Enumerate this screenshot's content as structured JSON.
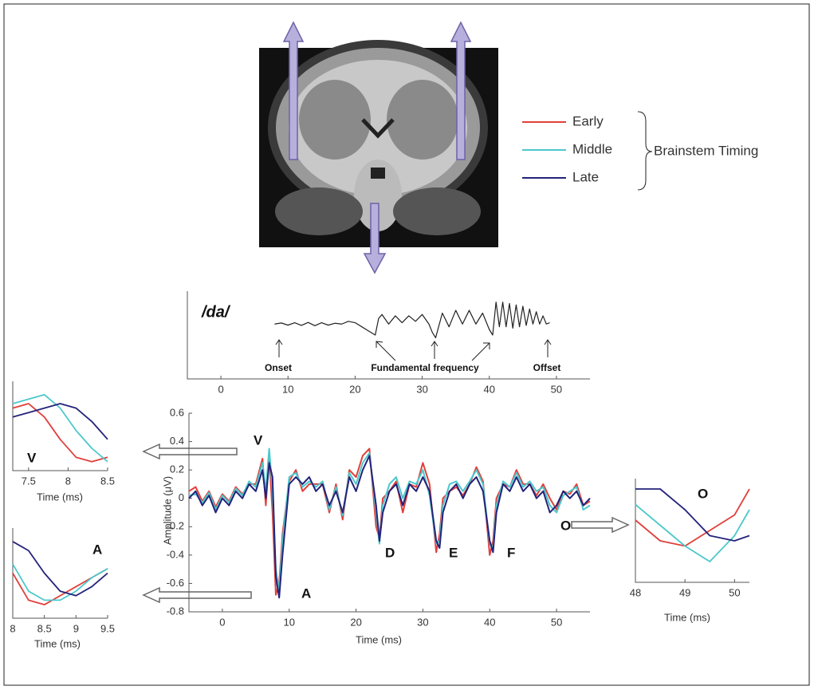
{
  "chart_data": [
    {
      "type": "line",
      "xlabel": "Time (ms)",
      "ylabel": "Amplitude (μV)",
      "xlim": [
        -5,
        55
      ],
      "ylim": [
        -0.8,
        0.6
      ],
      "xticks": [
        0,
        10,
        20,
        30,
        40,
        50
      ],
      "yticks": [
        -0.8,
        -0.6,
        -0.4,
        -0.2,
        0,
        0.2,
        0.4,
        0.6
      ],
      "legend_title": "Brainstem Timing",
      "annotations": [
        "V",
        "A",
        "D",
        "E",
        "F",
        "O"
      ],
      "x": [
        -5,
        -4,
        -3,
        -2,
        -1,
        0,
        1,
        2,
        3,
        4,
        5,
        6,
        6.5,
        7,
        7.5,
        8,
        8.5,
        9,
        10,
        11,
        12,
        13,
        14,
        15,
        16,
        17,
        18,
        19,
        20,
        21,
        22,
        23,
        23.5,
        24,
        25,
        26,
        27,
        28,
        29,
        30,
        31,
        32,
        32.5,
        33,
        34,
        35,
        36,
        37,
        38,
        39,
        40,
        40.5,
        41,
        42,
        43,
        44,
        45,
        46,
        47,
        48,
        49,
        50,
        51,
        52,
        53,
        54,
        55
      ],
      "series": [
        {
          "name": "Early",
          "color": "#e0403c",
          "values": [
            0.05,
            0.08,
            -0.02,
            0.05,
            -0.06,
            0.03,
            -0.02,
            0.08,
            0.03,
            0.1,
            0.1,
            0.28,
            -0.05,
            0.3,
            -0.1,
            -0.68,
            -0.6,
            -0.25,
            0.12,
            0.2,
            0.05,
            0.1,
            0.1,
            0.1,
            -0.1,
            0.1,
            -0.15,
            0.2,
            0.15,
            0.3,
            0.35,
            -0.2,
            -0.28,
            0,
            0.05,
            0.12,
            -0.1,
            0.1,
            0.08,
            0.25,
            0.1,
            -0.38,
            -0.25,
            0,
            0.05,
            0.08,
            0.02,
            0.1,
            0.22,
            0.12,
            -0.4,
            -0.3,
            0,
            0.1,
            0.08,
            0.2,
            0.1,
            0.1,
            0.02,
            0.1,
            0,
            -0.08,
            0.05,
            0.03,
            0.1,
            -0.05,
            -0.02
          ]
        },
        {
          "name": "Middle",
          "color": "#4cc8cc",
          "values": [
            0.02,
            0.03,
            -0.03,
            0.04,
            -0.08,
            0.02,
            -0.03,
            0.07,
            0.02,
            0.12,
            0.08,
            0.25,
            0.05,
            0.35,
            0.05,
            -0.5,
            -0.65,
            -0.3,
            0.15,
            0.18,
            0.08,
            0.12,
            0.08,
            0.12,
            -0.08,
            0.08,
            -0.12,
            0.18,
            0.1,
            0.25,
            0.32,
            -0.1,
            -0.32,
            -0.05,
            0.1,
            0.15,
            0,
            0.12,
            0.1,
            0.2,
            0.02,
            -0.32,
            -0.3,
            -0.05,
            0.1,
            0.12,
            0.05,
            0.12,
            0.2,
            0.1,
            -0.32,
            -0.35,
            -0.05,
            0.12,
            0.08,
            0.18,
            0.08,
            0.12,
            0.05,
            0.08,
            -0.05,
            -0.1,
            0.02,
            0.05,
            0.08,
            -0.08,
            -0.05
          ]
        },
        {
          "name": "Late",
          "color": "#23237a",
          "values": [
            0,
            0.05,
            -0.05,
            0.02,
            -0.1,
            0,
            -0.05,
            0.05,
            0,
            0.1,
            0.05,
            0.2,
            0,
            0.25,
            0.15,
            -0.55,
            -0.7,
            -0.4,
            0.1,
            0.15,
            0.1,
            0.15,
            0.05,
            0.1,
            -0.05,
            0.05,
            -0.1,
            0.15,
            0.05,
            0.2,
            0.3,
            -0.05,
            -0.3,
            -0.1,
            0.05,
            0.1,
            -0.05,
            0.1,
            0.05,
            0.15,
            0.05,
            -0.3,
            -0.35,
            -0.1,
            0.05,
            0.1,
            0,
            0.1,
            0.15,
            0.05,
            -0.3,
            -0.38,
            -0.1,
            0.1,
            0.05,
            0.15,
            0.05,
            0.1,
            0,
            0.05,
            -0.1,
            -0.05,
            0.05,
            0,
            0.05,
            -0.05,
            0
          ]
        }
      ]
    },
    {
      "type": "line",
      "xlim": [
        -5,
        55
      ],
      "ylim": [
        -2,
        1.2
      ],
      "xticks": [
        0,
        10,
        20,
        30,
        40,
        50
      ],
      "annotations": [
        "/da/",
        "Onset",
        "Fundamental frequency",
        "Offset"
      ],
      "x": [
        8,
        9,
        10,
        11,
        12,
        13,
        14,
        15,
        16,
        17,
        18,
        19,
        20,
        21,
        22,
        23,
        23.5,
        24,
        25,
        26,
        27,
        28,
        29,
        30,
        31,
        31.5,
        32,
        33,
        34,
        35,
        36,
        37,
        38,
        39,
        40,
        40.5,
        41,
        41.5,
        42,
        42.5,
        43,
        43.5,
        44,
        44.5,
        45,
        45.5,
        46,
        46.5,
        47,
        47.5,
        48,
        48.5,
        49
      ],
      "series": [
        {
          "color": "#222222",
          "values": [
            0,
            0.04,
            -0.04,
            0.05,
            -0.05,
            0.06,
            -0.06,
            0.05,
            -0.04,
            0.03,
            0,
            0.1,
            0.05,
            -0.1,
            -0.25,
            -0.4,
            0.2,
            0.35,
            0,
            0.3,
            0.05,
            0.3,
            0.1,
            0.35,
            0,
            -0.3,
            -0.5,
            0.4,
            -0.1,
            0.5,
            0,
            0.5,
            0,
            0.4,
            -0.2,
            -0.4,
            0.8,
            -0.1,
            0.8,
            -0.1,
            0.75,
            -0.15,
            0.7,
            -0.1,
            0.65,
            -0.05,
            0.55,
            0,
            0.45,
            0,
            0.3,
            0,
            0.05
          ]
        }
      ]
    },
    {
      "type": "line",
      "xlabel": "Time (ms)",
      "xlim": [
        7.3,
        8.5
      ],
      "ylim": [
        0,
        1
      ],
      "xticks": [
        7.5,
        8,
        8.5
      ],
      "annotations": [
        "V"
      ],
      "x": [
        7.3,
        7.5,
        7.7,
        7.9,
        8.1,
        8.3,
        8.5
      ],
      "series": [
        {
          "color": "#e0403c",
          "values": [
            0.7,
            0.75,
            0.6,
            0.35,
            0.15,
            0.1,
            0.15
          ]
        },
        {
          "color": "#4cc8cc",
          "values": [
            0.75,
            0.8,
            0.85,
            0.7,
            0.45,
            0.25,
            0.1
          ]
        },
        {
          "color": "#23237a",
          "values": [
            0.6,
            0.65,
            0.7,
            0.75,
            0.7,
            0.55,
            0.35
          ]
        }
      ]
    },
    {
      "type": "line",
      "xlabel": "Time (ms)",
      "xlim": [
        8,
        9.5
      ],
      "ylim": [
        0,
        1
      ],
      "xticks": [
        8,
        8.5,
        9,
        9.5
      ],
      "annotations": [
        "A"
      ],
      "x": [
        8,
        8.25,
        8.5,
        8.75,
        9,
        9.25,
        9.5
      ],
      "series": [
        {
          "color": "#e0403c",
          "values": [
            0.5,
            0.2,
            0.15,
            0.25,
            0.35,
            0.45,
            0.55
          ]
        },
        {
          "color": "#4cc8cc",
          "values": [
            0.6,
            0.3,
            0.2,
            0.2,
            0.3,
            0.45,
            0.55
          ]
        },
        {
          "color": "#23237a",
          "values": [
            0.85,
            0.75,
            0.5,
            0.3,
            0.25,
            0.35,
            0.5
          ]
        }
      ]
    },
    {
      "type": "line",
      "xlabel": "Time (ms)",
      "xlim": [
        48,
        50.3
      ],
      "ylim": [
        0,
        1
      ],
      "xticks": [
        48,
        49,
        50
      ],
      "annotations": [
        "O"
      ],
      "x": [
        48,
        48.5,
        49,
        49.5,
        50,
        50.3
      ],
      "series": [
        {
          "color": "#e0403c",
          "values": [
            0.6,
            0.4,
            0.35,
            0.5,
            0.65,
            0.9
          ]
        },
        {
          "color": "#4cc8cc",
          "values": [
            0.75,
            0.55,
            0.35,
            0.2,
            0.45,
            0.7
          ]
        },
        {
          "color": "#23237a",
          "values": [
            0.9,
            0.9,
            0.7,
            0.45,
            0.4,
            0.45
          ]
        }
      ]
    }
  ]
}
